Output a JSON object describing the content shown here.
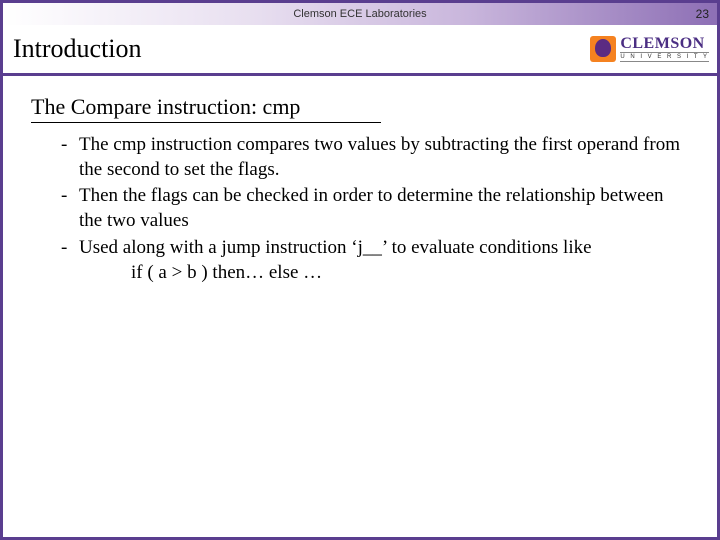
{
  "header": {
    "lab_label": "Clemson ECE Laboratories",
    "page_number": "23"
  },
  "title": "Introduction",
  "logo": {
    "main": "CLEMSON",
    "sub": "U N I V E R S I T Y"
  },
  "content": {
    "subheading": "The Compare instruction: cmp",
    "bullets": [
      "The cmp instruction compares two values by subtracting the first operand from the second to set the flags.",
      "Then the flags can be checked in order to determine the relationship between the two values",
      "Used along with a jump instruction ‘j__’ to evaluate conditions like"
    ],
    "indent_line": "if ( a > b ) then… else …"
  },
  "colors": {
    "border": "#5a3e8f",
    "gradient_start": "#ffffff",
    "gradient_end": "#8d6fb5",
    "logo_orange": "#f58220",
    "logo_purple": "#4b2e83"
  }
}
